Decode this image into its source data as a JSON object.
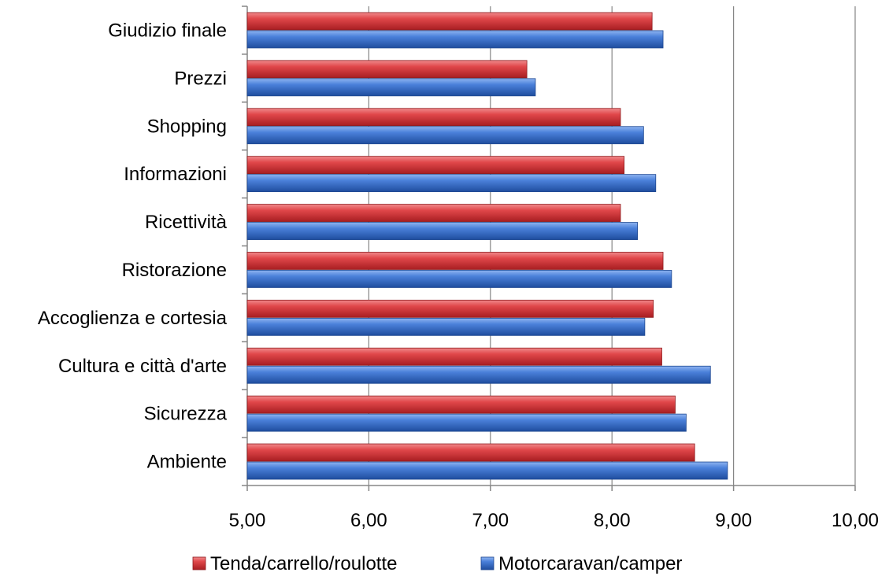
{
  "chart_data": {
    "type": "bar",
    "orientation": "horizontal",
    "title": "",
    "xlabel": "",
    "ylabel": "",
    "xlim": [
      5,
      10
    ],
    "x_ticks": [
      5,
      6,
      7,
      8,
      9,
      10
    ],
    "x_tick_labels": [
      "5,00",
      "6,00",
      "7,00",
      "8,00",
      "9,00",
      "10,00"
    ],
    "grid": "vertical major gridlines",
    "legend_position": "bottom",
    "categories": [
      "Giudizio finale",
      "Prezzi",
      "Shopping",
      "Informazioni",
      "Ricettività",
      "Ristorazione",
      "Accoglienza e cortesia",
      "Cultura e città d'arte",
      "Sicurezza",
      "Ambiente"
    ],
    "series": [
      {
        "name": "Tenda/carrello/roulotte",
        "color": "#d9393c",
        "values": [
          8.33,
          7.3,
          8.07,
          8.1,
          8.07,
          8.42,
          8.34,
          8.41,
          8.52,
          8.68
        ]
      },
      {
        "name": "Motorcaravan/camper",
        "color": "#3f76d4",
        "values": [
          8.42,
          7.37,
          8.26,
          8.36,
          8.21,
          8.49,
          8.27,
          8.81,
          8.61,
          8.95
        ]
      }
    ]
  }
}
